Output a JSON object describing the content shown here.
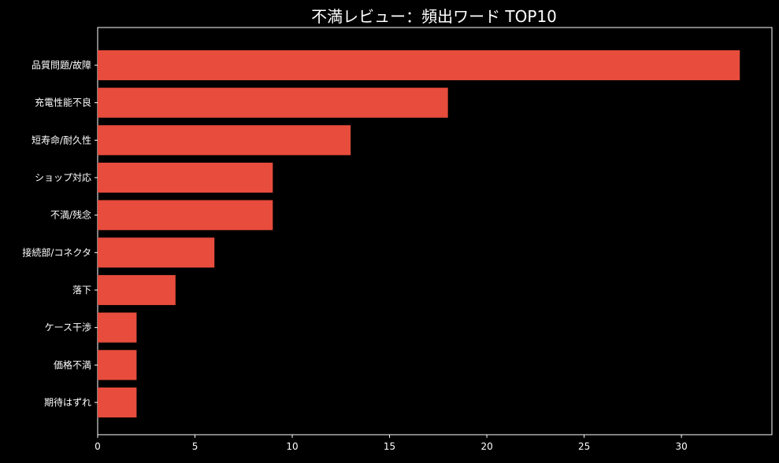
{
  "chart_data": {
    "type": "bar",
    "orientation": "horizontal",
    "title": "不満レビュー：頻出ワード TOP10",
    "xlabel": "",
    "ylabel": "",
    "categories": [
      "品質問題/故障",
      "充電性能不良",
      "短寿命/耐久性",
      "ショップ対応",
      "不満/残念",
      "接続部/コネクタ",
      "落下",
      "ケース干渉",
      "価格不満",
      "期待はずれ"
    ],
    "values": [
      33,
      18,
      13,
      9,
      9,
      6,
      4,
      2,
      2,
      2
    ],
    "xlim": [
      0,
      34.65
    ],
    "xticks": [
      0,
      5,
      10,
      15,
      20,
      25,
      30
    ],
    "grid": false,
    "colors": {
      "bar": "#e74c3c",
      "background": "#000000",
      "axis": "#ffffff",
      "text": "#ffffff"
    }
  }
}
